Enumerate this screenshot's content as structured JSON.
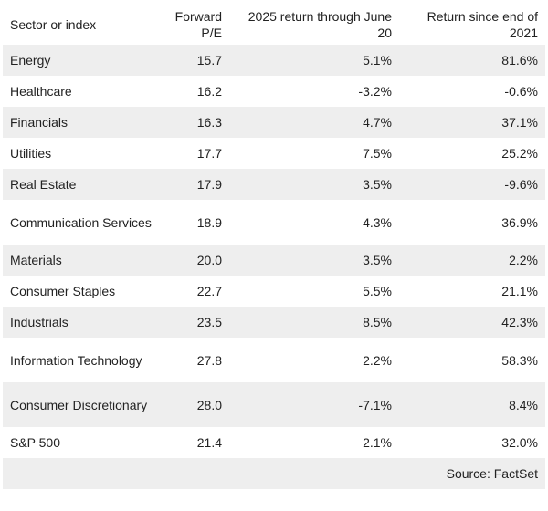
{
  "table": {
    "headers": [
      "Sector or index",
      "Forward P/E",
      "2025 return through June 20",
      "Return since end of 2021"
    ],
    "rows": [
      {
        "name": "Energy",
        "pe": "15.7",
        "ret2025": "5.1%",
        "ret2021": "81.6%"
      },
      {
        "name": "Healthcare",
        "pe": "16.2",
        "ret2025": "-3.2%",
        "ret2021": "-0.6%"
      },
      {
        "name": "Financials",
        "pe": "16.3",
        "ret2025": "4.7%",
        "ret2021": "37.1%"
      },
      {
        "name": "Utilities",
        "pe": "17.7",
        "ret2025": "7.5%",
        "ret2021": "25.2%"
      },
      {
        "name": "Real Estate",
        "pe": "17.9",
        "ret2025": "3.5%",
        "ret2021": "-9.6%"
      },
      {
        "name": "Communication Services",
        "pe": "18.9",
        "ret2025": "4.3%",
        "ret2021": "36.9%"
      },
      {
        "name": "Materials",
        "pe": "20.0",
        "ret2025": "3.5%",
        "ret2021": "2.2%"
      },
      {
        "name": "Consumer Staples",
        "pe": "22.7",
        "ret2025": "5.5%",
        "ret2021": "21.1%"
      },
      {
        "name": "Industrials",
        "pe": "23.5",
        "ret2025": "8.5%",
        "ret2021": "42.3%"
      },
      {
        "name": "Information Technology",
        "pe": "27.8",
        "ret2025": "2.2%",
        "ret2021": "58.3%"
      },
      {
        "name": "Consumer Discretionary",
        "pe": "28.0",
        "ret2025": "-7.1%",
        "ret2021": "8.4%"
      },
      {
        "name": "S&P 500",
        "pe": "21.4",
        "ret2025": "2.1%",
        "ret2021": "32.0%"
      }
    ]
  },
  "source": "Source: FactSet",
  "colors": {
    "stripe": "#eeeeee",
    "text": "#222222"
  }
}
